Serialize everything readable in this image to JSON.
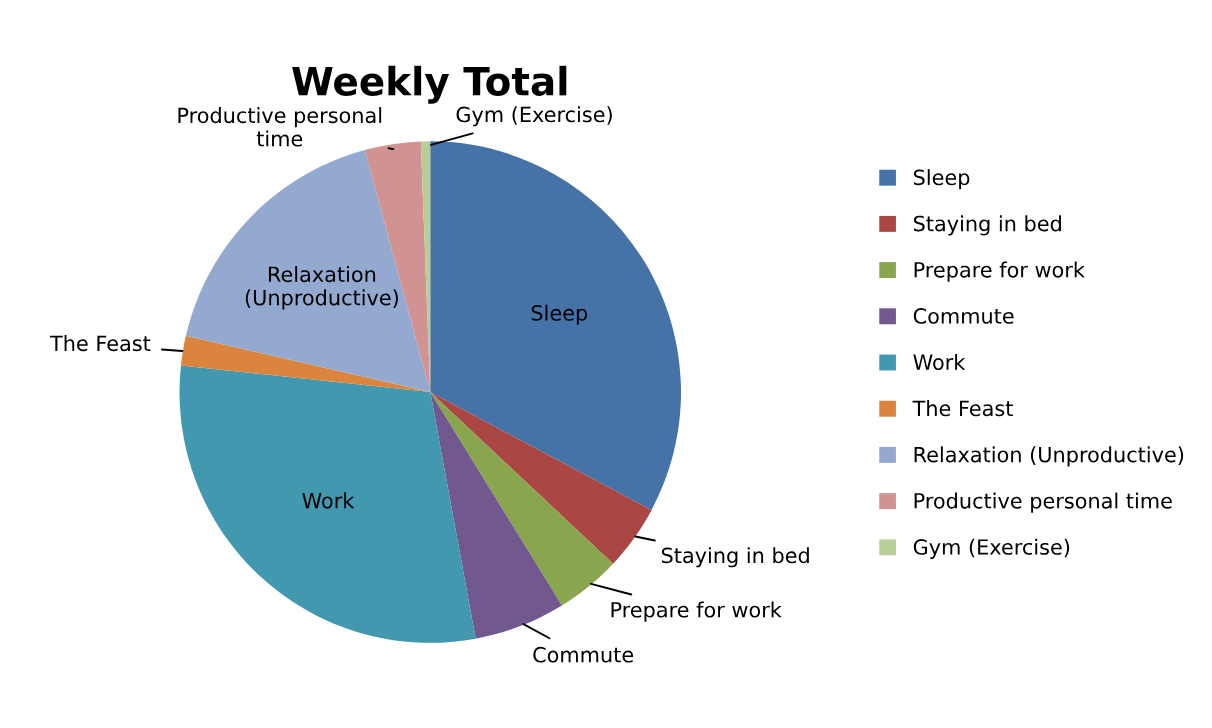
{
  "chart_data": {
    "type": "pie",
    "title": "Weekly Total",
    "categories": [
      "Sleep",
      "Staying in bed",
      "Prepare for work",
      "Commute",
      "Work",
      "The Feast",
      "Relaxation (Unproductive)",
      "Productive personal time",
      "Gym (Exercise)"
    ],
    "values": [
      32.8,
      4.2,
      4.2,
      5.9,
      29.6,
      1.9,
      17.2,
      3.6,
      0.6
    ],
    "colors": [
      "#4572a7",
      "#aa4643",
      "#89a54e",
      "#71588f",
      "#4198af",
      "#db843d",
      "#93a9cf",
      "#d19392",
      "#b9cd96"
    ],
    "legend": "right"
  }
}
